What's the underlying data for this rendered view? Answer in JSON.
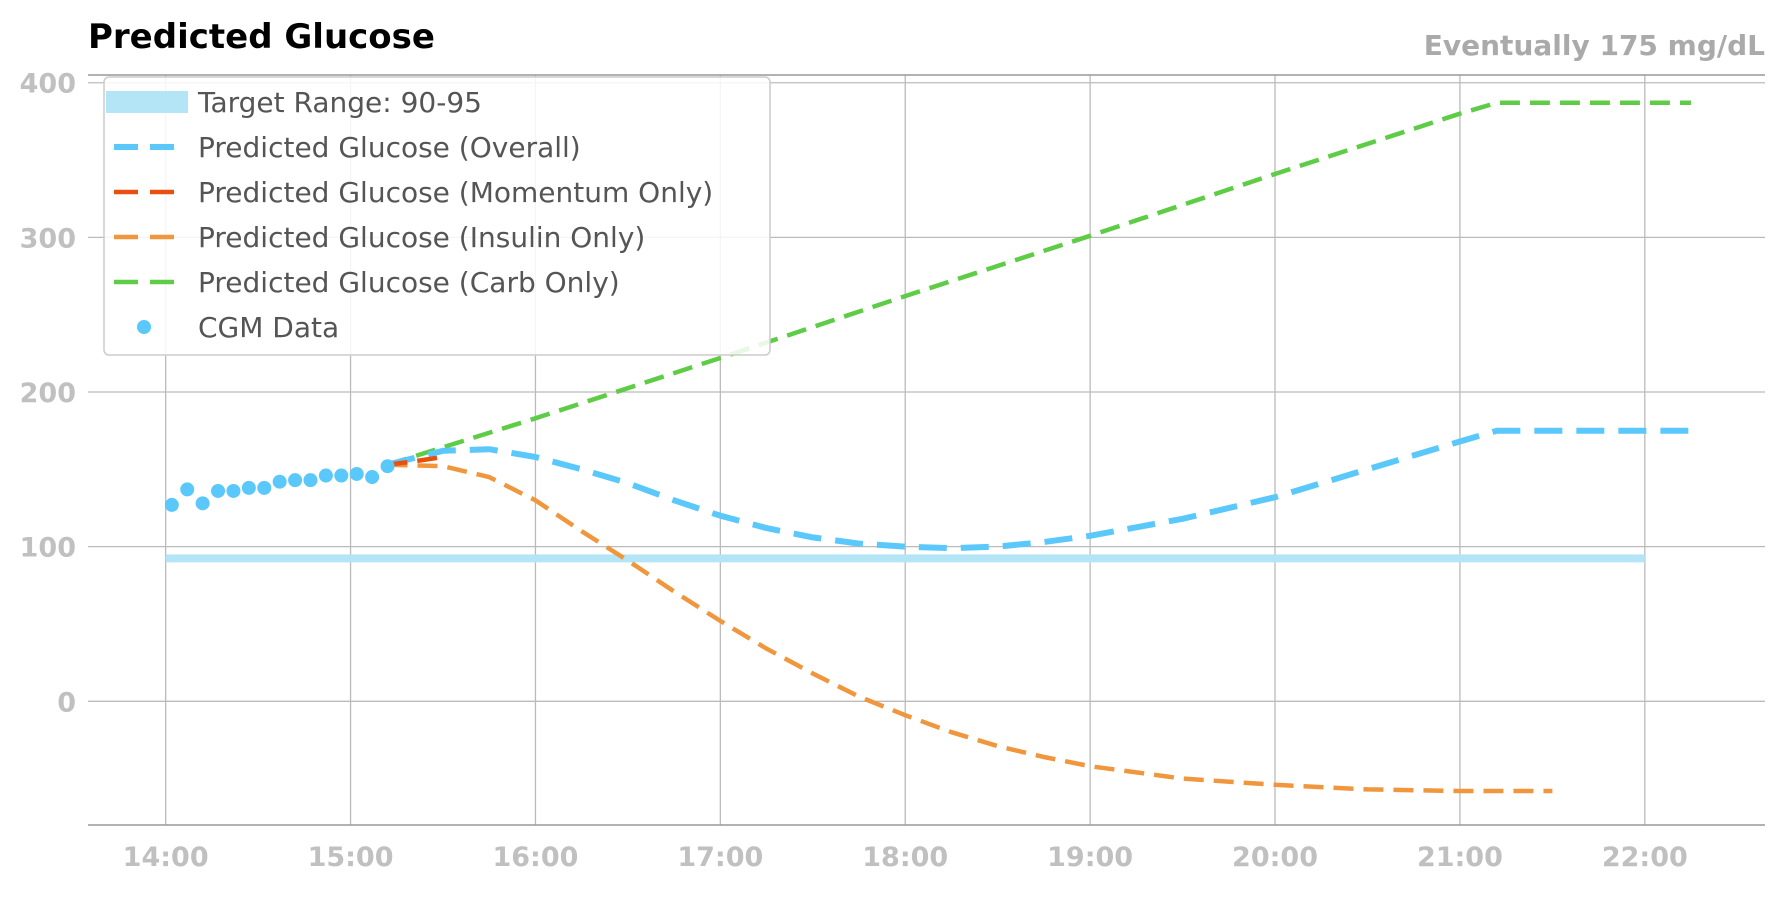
{
  "chart_data": {
    "type": "line",
    "title": "Predicted Glucose",
    "subtitle": "Eventually 175 mg/dL",
    "xlabel": "",
    "ylabel": "",
    "x_range_hours": [
      13.58,
      22.65
    ],
    "ylim": [
      -80,
      405
    ],
    "x_ticks": [
      "14:00",
      "15:00",
      "16:00",
      "17:00",
      "18:00",
      "19:00",
      "20:00",
      "21:00",
      "22:00"
    ],
    "y_ticks": [
      0,
      100,
      200,
      300,
      400
    ],
    "grid": true,
    "legend_position": "top-left",
    "colors": {
      "target": "#b3e5f7",
      "overall": "#5ac8fa",
      "momentum": "#e8500f",
      "insulin": "#f0963c",
      "carb": "#5ecc46",
      "cgm": "#5ac8fa",
      "grid": "#bbbbbb"
    },
    "target_range": {
      "name": "Target Range: 90-95",
      "start": "14:00",
      "end": "22:00",
      "low": 90,
      "high": 95
    },
    "series": [
      {
        "name": "Predicted Glucose (Overall)",
        "key": "overall",
        "x": [
          "15:12",
          "15:30",
          "15:45",
          "16:00",
          "16:15",
          "16:30",
          "16:45",
          "17:00",
          "17:15",
          "17:30",
          "17:45",
          "18:00",
          "18:15",
          "18:30",
          "18:45",
          "19:00",
          "19:30",
          "20:00",
          "20:30",
          "21:00",
          "21:12",
          "21:30",
          "22:00",
          "22:15"
        ],
        "y": [
          153,
          162,
          163,
          158,
          150,
          141,
          130,
          120,
          112,
          106,
          102,
          100,
          99,
          100,
          103,
          107,
          118,
          132,
          150,
          168,
          175,
          175,
          175,
          175
        ]
      },
      {
        "name": "Predicted Glucose (Momentum Only)",
        "key": "momentum",
        "x": [
          "15:12",
          "15:20",
          "15:30"
        ],
        "y": [
          153,
          155,
          158
        ]
      },
      {
        "name": "Predicted Glucose (Insulin Only)",
        "key": "insulin",
        "x": [
          "15:12",
          "15:30",
          "15:45",
          "16:00",
          "16:15",
          "16:30",
          "16:45",
          "17:00",
          "17:15",
          "17:30",
          "17:45",
          "18:00",
          "18:15",
          "18:30",
          "18:45",
          "19:00",
          "19:30",
          "20:00",
          "20:30",
          "21:00",
          "21:30"
        ],
        "y": [
          153,
          152,
          145,
          130,
          110,
          91,
          71,
          52,
          34,
          18,
          3,
          -9,
          -20,
          -29,
          -36,
          -42,
          -50,
          -54,
          -57,
          -58,
          -58
        ]
      },
      {
        "name": "Predicted Glucose (Carb Only)",
        "key": "carb",
        "x": [
          "15:12",
          "16:00",
          "17:00",
          "18:00",
          "19:00",
          "20:00",
          "21:00",
          "21:12",
          "21:30",
          "22:00",
          "22:15"
        ],
        "y": [
          153,
          183,
          222,
          262,
          301,
          341,
          380,
          387,
          387,
          387,
          387
        ]
      }
    ],
    "cgm": {
      "name": "CGM Data",
      "x": [
        "14:02",
        "14:07",
        "14:12",
        "14:17",
        "14:22",
        "14:27",
        "14:32",
        "14:37",
        "14:42",
        "14:47",
        "14:52",
        "14:57",
        "15:02",
        "15:07",
        "15:12"
      ],
      "y": [
        127,
        137,
        128,
        136,
        136,
        138,
        138,
        142,
        143,
        143,
        146,
        146,
        147,
        145,
        152
      ]
    }
  }
}
